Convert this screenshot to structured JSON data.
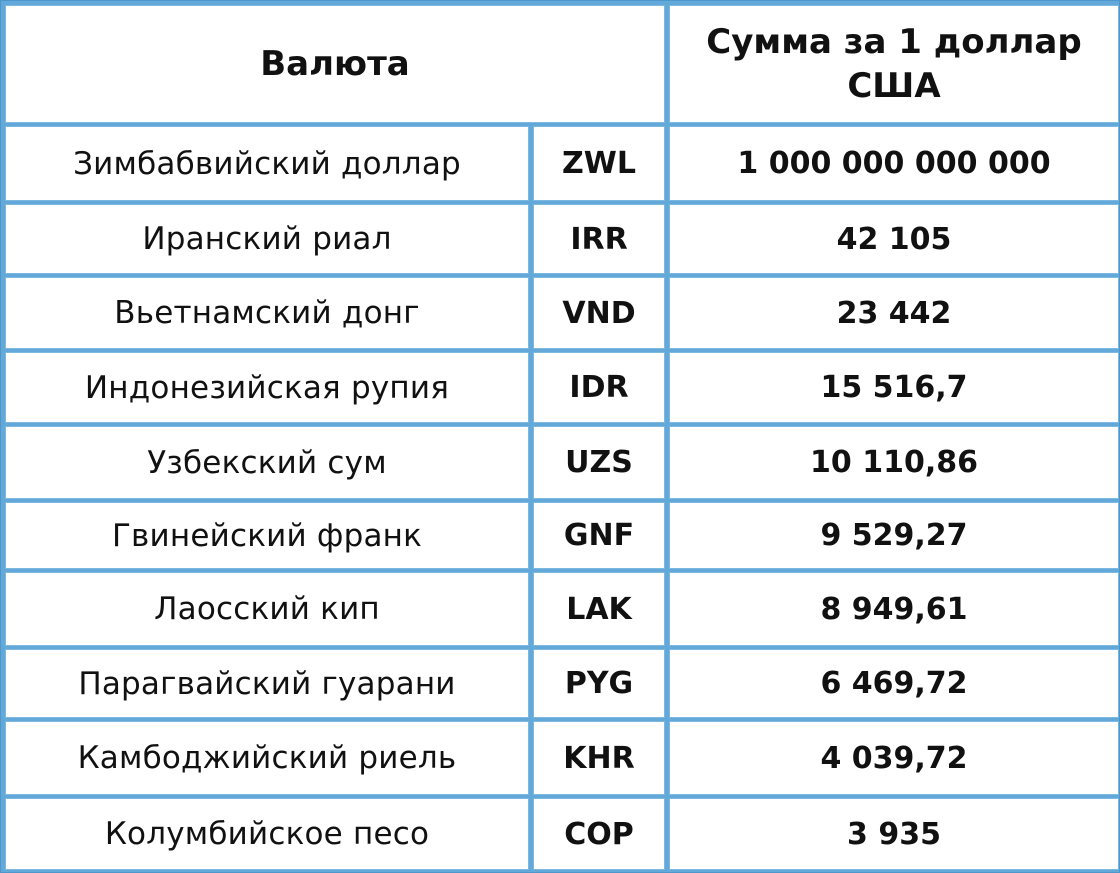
{
  "header": {
    "currency": "Валюта",
    "amount": "Сумма за 1 доллар США"
  },
  "rows": [
    {
      "name": "Зимбабвийский доллар",
      "code": "ZWL",
      "rate": "1 000 000 000 000"
    },
    {
      "name": "Иранский риал",
      "code": "IRR",
      "rate": "42 105"
    },
    {
      "name": "Вьетнамский донг",
      "code": "VND",
      "rate": "23 442"
    },
    {
      "name": "Индонезийская рупия",
      "code": "IDR",
      "rate": "15 516,7"
    },
    {
      "name": "Узбекский сум",
      "code": "UZS",
      "rate": "10 110,86"
    },
    {
      "name": "Гвинейский франк",
      "code": "GNF",
      "rate": "9 529,27"
    },
    {
      "name": "Лаосский кип",
      "code": "LAK",
      "rate": "8 949,61"
    },
    {
      "name": "Парагвайский гуарани",
      "code": "PYG",
      "rate": "6 469,72"
    },
    {
      "name": "Камбоджийский риель",
      "code": "KHR",
      "rate": "4 039,72"
    },
    {
      "name": "Колумбийское песо",
      "code": "COP",
      "rate": "3 935"
    }
  ]
}
